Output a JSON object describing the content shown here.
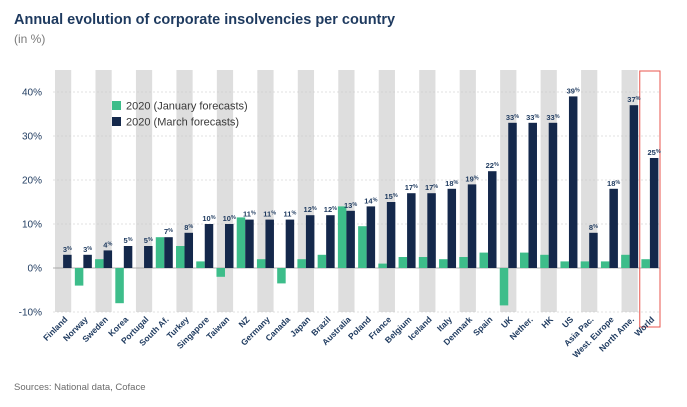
{
  "header": {
    "title": "Annual evolution of corporate insolvencies per country",
    "subtitle": "(in %)"
  },
  "footer": {
    "source": "Sources: National data, Coface"
  },
  "colors": {
    "january": "#3dbd8a",
    "march": "#14284b",
    "stripe": "#dedede",
    "highlight": "#e8554e"
  },
  "chart_data": {
    "type": "bar",
    "title": "Annual evolution of corporate insolvencies per country",
    "subtitle": "(in %)",
    "ylim": [
      -10,
      45
    ],
    "yticks": [
      -10,
      0,
      10,
      20,
      30,
      40
    ],
    "ytick_labels": [
      "-10%",
      "0%",
      "10%",
      "20%",
      "30%",
      "40%"
    ],
    "legend_position": "top-left",
    "categories": [
      "Finland",
      "Norway",
      "Sweden",
      "Korea",
      "Portugal",
      "South Af.",
      "Turkey",
      "Singapore",
      "Taiwan",
      "NZ",
      "Germany",
      "Canada",
      "Japan",
      "Brazil",
      "Australia",
      "Poland",
      "France",
      "Belgium",
      "Iceland",
      "Italy",
      "Denmark",
      "Spain",
      "UK",
      "Nether.",
      "HK",
      "US",
      "Asia Pac.",
      "West. Europe",
      "North Ame.",
      "World"
    ],
    "highlight_category": "World",
    "series": [
      {
        "name": "2020 (January forecasts)",
        "values": [
          0,
          -4,
          2,
          -8,
          0,
          7,
          5,
          1.5,
          -2,
          11.5,
          2,
          -3.5,
          2,
          3,
          14,
          9.5,
          1,
          2.5,
          2.5,
          2,
          2.5,
          3.5,
          -8.5,
          3.5,
          3,
          1.5,
          1.5,
          1.5,
          3,
          2
        ]
      },
      {
        "name": "2020 (March forecasts)",
        "values": [
          3,
          3,
          4,
          5,
          5,
          7,
          8,
          10,
          10,
          11,
          11,
          11,
          12,
          12,
          13,
          14,
          15,
          17,
          17,
          18,
          19,
          22,
          33,
          33,
          33,
          39,
          8,
          18,
          37,
          25
        ],
        "labels": [
          "3%",
          "3%",
          "4%",
          "5%",
          "5%",
          "7%",
          "8%",
          "10%",
          "10%",
          "11%",
          "11%",
          "11%",
          "12%",
          "12%",
          "13%",
          "14%",
          "15%",
          "17%",
          "17%",
          "18%",
          "19%",
          "22%",
          "33%",
          "33%",
          "33%",
          "39%",
          "8%",
          "18%",
          "37%",
          "25%"
        ]
      }
    ]
  }
}
